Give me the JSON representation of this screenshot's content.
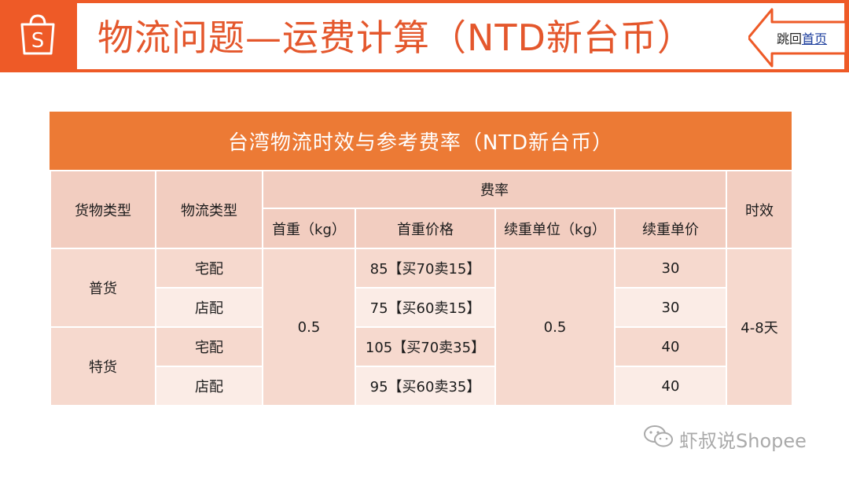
{
  "header": {
    "title": "物流问题—运费计算（NTD新台币）",
    "logo_icon": "shopee-bag-icon",
    "back_prefix": "跳回",
    "back_link": "首页"
  },
  "table": {
    "title": "台湾物流时效与参考费率（NTD新台币）",
    "headers": {
      "goods_type": "货物类型",
      "logistics_type": "物流类型",
      "rate": "费率",
      "first_weight": "首重（kg）",
      "first_price": "首重价格",
      "cont_unit": "续重单位（kg）",
      "cont_price": "续重单价",
      "timing": "时效"
    },
    "merged": {
      "first_weight": "0.5",
      "cont_unit": "0.5",
      "timing": "4-8天"
    },
    "groups": [
      "普货",
      "特货"
    ],
    "rows": [
      {
        "logistics": "宅配",
        "first_price": "85【买70卖15】",
        "cont_price": "30"
      },
      {
        "logistics": "店配",
        "first_price": "75【买60卖15】",
        "cont_price": "30"
      },
      {
        "logistics": "宅配",
        "first_price": "105【买70卖35】",
        "cont_price": "40"
      },
      {
        "logistics": "店配",
        "first_price": "95【买60卖35】",
        "cont_price": "40"
      }
    ]
  },
  "watermark": {
    "text": "虾叔说Shopee",
    "icon": "wechat-icon"
  },
  "colors": {
    "brand_orange": "#ee5a27",
    "title_orange": "#ec7a35",
    "header_cell": "#f2cdc0",
    "cell_dark": "#f6d9ce",
    "cell_light": "#fbece6",
    "link_blue": "#1a3c9c"
  }
}
